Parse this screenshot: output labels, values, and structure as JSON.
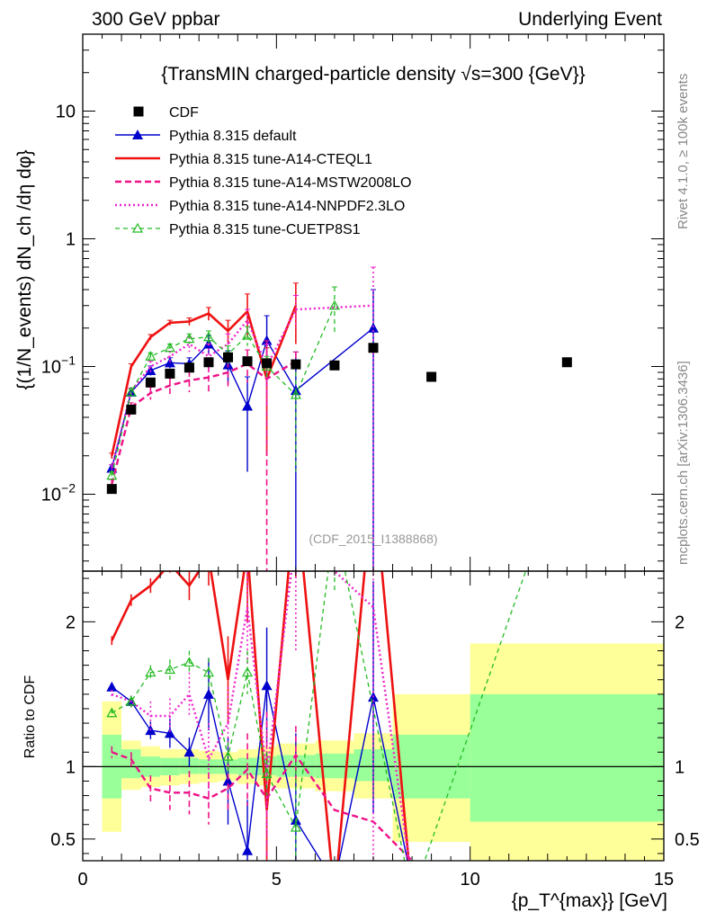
{
  "header": {
    "left": "300 GeV ppbar",
    "right": "Underlying Event"
  },
  "side_labels": {
    "rivet": "Rivet 4.1.0, ≥ 100k events",
    "mcplots": "mcplots.cern.ch [arXiv:1306.3436]"
  },
  "colors": {
    "data": "#000000",
    "default": "#0000cc",
    "a14_cteql1": "#ee1111",
    "a14_mstw": "#ee1188",
    "a14_nnpdf": "#ee22cc",
    "cuetp8s1": "#22bb22",
    "band_inner": "#99ff99",
    "band_outer": "#ffff99"
  },
  "chart_data": [
    {
      "type": "line",
      "title": "{TransMIN charged-particle density √s=300 {GeV}}",
      "xlabel": "{p_T^{max}} [GeV]",
      "ylabel": "{(1/N_events) dN_ch /dη dφ}",
      "xlim": [
        0,
        15
      ],
      "ylim": [
        0.0025,
        40
      ],
      "yscale": "log",
      "watermark": "(CDF_2015_I1388868)",
      "ytick_labels": [
        {
          "value": 0.01,
          "label": "10",
          "exp": "−2"
        },
        {
          "value": 0.1,
          "label": "10",
          "exp": "−1"
        },
        {
          "value": 1,
          "label": "1",
          "exp": ""
        },
        {
          "value": 10,
          "label": "10",
          "exp": ""
        }
      ],
      "legend": [
        {
          "key": "data",
          "label": "CDF"
        },
        {
          "key": "default",
          "label": "Pythia 8.315 default"
        },
        {
          "key": "a14_cteql1",
          "label": "Pythia 8.315 tune-A14-CTEQL1"
        },
        {
          "key": "a14_mstw",
          "label": "Pythia 8.315 tune-A14-MSTW2008LO"
        },
        {
          "key": "a14_nnpdf",
          "label": "Pythia 8.315 tune-A14-NNPDF2.3LO"
        },
        {
          "key": "cuetp8s1",
          "label": "Pythia 8.315 tune-CUETP8S1"
        }
      ],
      "data": {
        "x": [
          0.75,
          1.25,
          1.75,
          2.25,
          2.75,
          3.25,
          3.75,
          4.25,
          4.75,
          5.5,
          6.5,
          7.5,
          9.0,
          12.5
        ],
        "y": [
          0.011,
          0.046,
          0.075,
          0.088,
          0.098,
          0.108,
          0.118,
          0.11,
          0.106,
          0.104,
          0.102,
          0.14,
          0.083,
          0.108
        ]
      },
      "series": [
        {
          "key": "default",
          "x": [
            0.75,
            1.25,
            1.75,
            2.25,
            2.75,
            3.25,
            3.75,
            4.25,
            4.75,
            5.5,
            7.5
          ],
          "y": [
            0.016,
            0.063,
            0.093,
            0.107,
            0.105,
            0.15,
            0.103,
            0.049,
            0.16,
            0.065,
            0.2
          ],
          "err": [
            0.001,
            0.004,
            0.008,
            0.01,
            0.012,
            0.025,
            0.03,
            0.034,
            0.09,
            0.065,
            0.2
          ]
        },
        {
          "key": "a14_cteql1",
          "x": [
            0.75,
            1.25,
            1.75,
            2.25,
            2.75,
            3.25,
            3.75,
            4.25,
            4.75,
            5.5
          ],
          "y": [
            0.02,
            0.1,
            0.17,
            0.22,
            0.225,
            0.26,
            0.19,
            0.27,
            0.08,
            0.3
          ],
          "err": [
            0.001,
            0.005,
            0.008,
            0.01,
            0.015,
            0.03,
            0.04,
            0.1,
            0.06,
            0.15
          ]
        },
        {
          "key": "a14_mstw",
          "x": [
            0.75,
            1.25,
            1.75,
            2.25,
            2.75,
            3.25,
            3.75,
            4.25,
            4.75,
            5.5
          ],
          "y": [
            0.012,
            0.048,
            0.062,
            0.071,
            0.078,
            0.082,
            0.09,
            0.105,
            0.08,
            0.11
          ],
          "err": [
            0.001,
            0.004,
            0.007,
            0.01,
            0.015,
            0.02,
            0.02,
            0.03,
            0.079,
            0.02
          ]
        },
        {
          "key": "a14_nnpdf",
          "x": [
            0.75,
            1.25,
            1.75,
            2.25,
            2.75,
            3.25,
            3.75,
            4.25,
            4.75,
            5.5,
            7.5
          ],
          "y": [
            0.016,
            0.064,
            0.1,
            0.12,
            0.15,
            0.12,
            0.15,
            0.23,
            0.1,
            0.28,
            0.3
          ],
          "err": [
            0.001,
            0.004,
            0.01,
            0.012,
            0.02,
            0.03,
            0.03,
            0.05,
            0.05,
            0.08,
            0.3
          ]
        },
        {
          "key": "cuetp8s1",
          "x": [
            0.75,
            1.25,
            1.75,
            2.25,
            2.75,
            3.25,
            3.75,
            4.25,
            4.75,
            5.5,
            6.5
          ],
          "y": [
            0.014,
            0.063,
            0.12,
            0.14,
            0.165,
            0.17,
            0.125,
            0.175,
            0.1,
            0.06,
            0.3
          ],
          "err": [
            0.001,
            0.004,
            0.008,
            0.01,
            0.015,
            0.02,
            0.02,
            0.03,
            0.02,
            0.045,
            0.12
          ]
        }
      ]
    },
    {
      "type": "line",
      "title": "",
      "xlabel": "{p_T^{max}} [GeV]",
      "ylabel": "Ratio to CDF",
      "xlim": [
        0,
        15
      ],
      "ylim": [
        0.35,
        2.35
      ],
      "ytick_labels": [
        {
          "value": 0.5,
          "label": "0.5"
        },
        {
          "value": 1,
          "label": "1"
        },
        {
          "value": 2,
          "label": "2"
        }
      ],
      "xtick_labels": [
        {
          "value": 0,
          "label": "0"
        },
        {
          "value": 5,
          "label": "5"
        },
        {
          "value": 10,
          "label": "10"
        },
        {
          "value": 15,
          "label": "15"
        }
      ],
      "bands": [
        {
          "x0": 0.5,
          "x1": 1.0,
          "inner": [
            0.78,
            1.22
          ],
          "outer": [
            0.55,
            1.45
          ]
        },
        {
          "x0": 1.0,
          "x1": 1.5,
          "inner": [
            0.92,
            1.12
          ],
          "outer": [
            0.84,
            1.18
          ]
        },
        {
          "x0": 1.5,
          "x1": 2.0,
          "inner": [
            0.93,
            1.07
          ],
          "outer": [
            0.86,
            1.14
          ]
        },
        {
          "x0": 2.0,
          "x1": 2.5,
          "inner": [
            0.94,
            1.06
          ],
          "outer": [
            0.87,
            1.12
          ]
        },
        {
          "x0": 2.5,
          "x1": 3.0,
          "inner": [
            0.95,
            1.06
          ],
          "outer": [
            0.88,
            1.12
          ]
        },
        {
          "x0": 3.0,
          "x1": 3.5,
          "inner": [
            0.95,
            1.05
          ],
          "outer": [
            0.89,
            1.11
          ]
        },
        {
          "x0": 3.5,
          "x1": 4.0,
          "inner": [
            0.95,
            1.05
          ],
          "outer": [
            0.9,
            1.1
          ]
        },
        {
          "x0": 4.0,
          "x1": 4.5,
          "inner": [
            0.94,
            1.06
          ],
          "outer": [
            0.88,
            1.12
          ]
        },
        {
          "x0": 4.5,
          "x1": 5.0,
          "inner": [
            0.94,
            1.07
          ],
          "outer": [
            0.87,
            1.14
          ]
        },
        {
          "x0": 5.0,
          "x1": 6.0,
          "inner": [
            0.93,
            1.08
          ],
          "outer": [
            0.85,
            1.16
          ]
        },
        {
          "x0": 6.0,
          "x1": 7.0,
          "inner": [
            0.92,
            1.09
          ],
          "outer": [
            0.83,
            1.18
          ]
        },
        {
          "x0": 7.0,
          "x1": 8.0,
          "inner": [
            0.9,
            1.12
          ],
          "outer": [
            0.78,
            1.23
          ]
        },
        {
          "x0": 8.0,
          "x1": 10.0,
          "inner": [
            0.78,
            1.22
          ],
          "outer": [
            0.48,
            1.5
          ]
        },
        {
          "x0": 10.0,
          "x1": 15.0,
          "inner": [
            0.62,
            1.5
          ],
          "outer": [
            0.35,
            1.85
          ]
        }
      ],
      "series": [
        {
          "key": "default",
          "x": [
            0.75,
            1.25,
            1.75,
            2.25,
            2.75,
            3.25,
            3.75,
            4.25,
            4.75,
            5.5,
            6.5,
            7.5,
            8.5
          ],
          "y": [
            1.55,
            1.45,
            1.25,
            1.23,
            1.1,
            1.5,
            0.9,
            0.42,
            1.56,
            0.63,
            0.2,
            1.48,
            0.2
          ],
          "err": [
            0.03,
            0.04,
            0.06,
            0.1,
            0.1,
            0.25,
            0.3,
            0.35,
            0.4,
            0.6,
            0,
            0.8,
            0
          ]
        },
        {
          "key": "a14_cteql1",
          "x": [
            0.75,
            1.25,
            1.75,
            2.25,
            2.75,
            3.25,
            3.75,
            4.25,
            4.75,
            5.5,
            6.5,
            7.5,
            8.5
          ],
          "y": [
            1.87,
            2.15,
            2.25,
            2.4,
            2.25,
            2.45,
            1.6,
            2.5,
            0.7,
            2.9,
            0.1,
            3.0,
            0.1
          ],
          "err": [
            0.03,
            0.04,
            0.05,
            0.06,
            0.1,
            0.2,
            0.3,
            0.5,
            0.4,
            0.6,
            0,
            0,
            0
          ]
        },
        {
          "key": "a14_mstw",
          "x": [
            0.75,
            1.25,
            1.75,
            2.25,
            2.75,
            3.25,
            3.75,
            4.25,
            4.75,
            5.5,
            6.5,
            7.5,
            8.5
          ],
          "y": [
            1.1,
            1.05,
            0.85,
            0.82,
            0.82,
            0.78,
            0.85,
            0.98,
            0.78,
            1.08,
            0.7,
            0.62,
            0.35
          ],
          "err": [
            0.04,
            0.05,
            0.09,
            0.12,
            0.15,
            0.18,
            0.17,
            0.25,
            0.6,
            0.2,
            0,
            0,
            0
          ]
        },
        {
          "key": "a14_nnpdf",
          "x": [
            0.75,
            1.25,
            1.75,
            2.25,
            2.75,
            3.25,
            3.75,
            4.25,
            4.75,
            5.5,
            7.5,
            8.5
          ],
          "y": [
            1.5,
            1.45,
            1.35,
            1.35,
            1.5,
            1.05,
            1.3,
            2.1,
            0.95,
            2.6,
            2.1,
            0.2
          ],
          "err": [
            0.03,
            0.04,
            0.1,
            0.12,
            0.15,
            0.25,
            0.25,
            0.4,
            0.4,
            0.8,
            2.0,
            0
          ]
        },
        {
          "key": "cuetp8s1",
          "x": [
            0.75,
            1.25,
            1.75,
            2.25,
            2.75,
            3.25,
            3.75,
            4.25,
            4.75,
            5.5,
            6.5,
            8.5,
            11.5
          ],
          "y": [
            1.37,
            1.45,
            1.65,
            1.67,
            1.72,
            1.65,
            1.07,
            1.65,
            0.95,
            0.58,
            2.7,
            0.1,
            2.4
          ],
          "err": [
            0.03,
            0.04,
            0.05,
            0.07,
            0.08,
            0.1,
            0.1,
            0.15,
            0.15,
            0.45,
            0.5,
            0,
            0
          ]
        }
      ]
    }
  ]
}
